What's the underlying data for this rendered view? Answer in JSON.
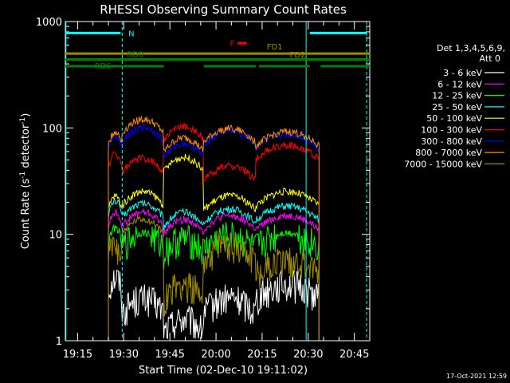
{
  "chart_data": {
    "type": "line",
    "title": "RHESSI Observing Summary Count Rates",
    "xlabel": "Start Time (02-Dec-10 19:11:02)",
    "ylabel_main": "Count Rate (s",
    "ylabel_sup1": "-1",
    "ylabel_mid": " detector",
    "ylabel_sup2": "-1",
    "ylabel_end": ")",
    "yscale": "log",
    "ylim": [
      1,
      1000
    ],
    "xlim_minutes": [
      1151.0,
      1250.0
    ],
    "x_tick_labels": [
      "19:15",
      "19:30",
      "19:45",
      "20:00",
      "20:15",
      "20:30",
      "20:45"
    ],
    "x_tick_minutes": [
      1155,
      1170,
      1185,
      1200,
      1215,
      1230,
      1245
    ],
    "y_tick_labels": [
      "1",
      "10",
      "100",
      "1000"
    ],
    "y_tick_values": [
      1,
      10,
      100,
      1000
    ],
    "timestamp": "17-Oct-2021 12:59",
    "legend": {
      "header1": "Det 1,3,4,5,6,9,",
      "header2": "Att 0",
      "placement": "right"
    },
    "data_window_minutes": [
      1165.0,
      1233.5
    ],
    "gap_minutes": [
      1229.0,
      1231.0
    ],
    "series": [
      {
        "name": "3 - 6 keV",
        "color": "#ffffff",
        "values_by_segment": [
          3.5,
          2.2,
          1.4,
          2.2,
          3.0
        ]
      },
      {
        "name": "6 - 12 keV",
        "color": "#ff00ff",
        "values_by_segment": [
          14,
          14,
          12,
          13,
          13
        ]
      },
      {
        "name": "12 - 25 keV",
        "color": "#00ff00",
        "values_by_segment": [
          10,
          9,
          8,
          8.5,
          9
        ]
      },
      {
        "name": "25 - 50 keV",
        "color": "#00ffff",
        "values_by_segment": [
          18,
          17,
          14,
          15,
          16
        ]
      },
      {
        "name": "50 - 100 keV",
        "color": "#ffff00",
        "values_by_segment": [
          20,
          22,
          46,
          20,
          22
        ]
      },
      {
        "name": "100 - 300 keV",
        "color": "#ff0000",
        "values_by_segment": [
          50,
          45,
          90,
          38,
          60
        ]
      },
      {
        "name": "300 - 800 keV",
        "color": "#0000ff",
        "values_by_segment": [
          75,
          88,
          62,
          82,
          76
        ]
      },
      {
        "name": "800 - 7000 keV",
        "color": "#ff8c00",
        "values_by_segment": [
          80,
          105,
          70,
          86,
          80
        ]
      },
      {
        "name": "7000 - 15000 keV",
        "color": "#a08c00",
        "values_by_segment": [
          7,
          12,
          3,
          7,
          5
        ]
      }
    ],
    "annotations": [
      {
        "label": "N",
        "color": "#00ffff",
        "y": 780,
        "ranges_minutes": [
          [
            1151.0,
            1169.0
          ],
          [
            1230.5,
            1249.0
          ]
        ]
      },
      {
        "label": "F",
        "color": "#ff0000",
        "y": 625,
        "ranges_minutes": [
          [
            1207.0,
            1210.0
          ]
        ]
      },
      {
        "label": "FD1",
        "color": "#a08c00",
        "y": 500,
        "ranges_minutes": [
          [
            1151.0,
            1250.0
          ]
        ]
      },
      {
        "label": "FD2",
        "color": "#a08c00",
        "y": 500,
        "ranges_minutes": []
      },
      {
        "label": "RD0",
        "color": "#008000",
        "y": 440,
        "ranges_minutes": [
          [
            1151.0,
            1250.0
          ]
        ]
      },
      {
        "label": "RD6",
        "color": "#008000",
        "y": 380,
        "ranges_minutes": [
          [
            1151.0,
            1170.0
          ],
          [
            1170.0,
            1183.0
          ],
          [
            1196.0,
            1213.0
          ],
          [
            1214.0,
            1230.5
          ],
          [
            1234.0,
            1250.0
          ]
        ]
      }
    ]
  }
}
